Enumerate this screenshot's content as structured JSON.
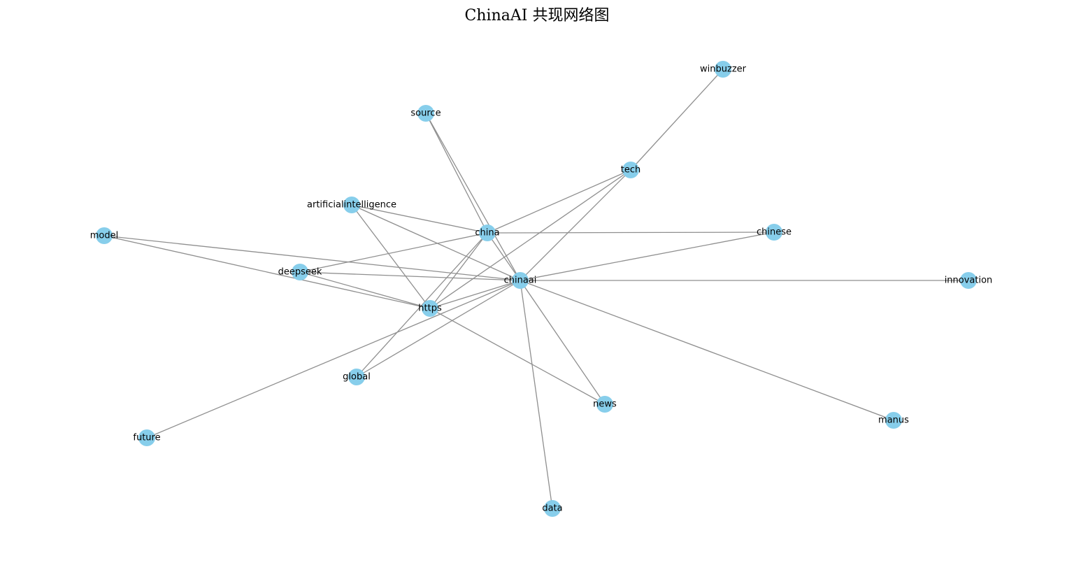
{
  "title": "ChinaAI 共现网络图",
  "colors": {
    "node": "#87ceeb",
    "edge": "#8f8f8f",
    "label": "#000000"
  },
  "nodes": [
    {
      "id": "chinaai",
      "label": "chinaai"
    },
    {
      "id": "china",
      "label": "china"
    },
    {
      "id": "https",
      "label": "https"
    },
    {
      "id": "deepseek",
      "label": "deepseek"
    },
    {
      "id": "artificialintelligence",
      "label": "artificialintelligence"
    },
    {
      "id": "tech",
      "label": "tech"
    },
    {
      "id": "source",
      "label": "source"
    },
    {
      "id": "winbuzzer",
      "label": "winbuzzer"
    },
    {
      "id": "chinese",
      "label": "chinese"
    },
    {
      "id": "model",
      "label": "model"
    },
    {
      "id": "innovation",
      "label": "innovation"
    },
    {
      "id": "global",
      "label": "global"
    },
    {
      "id": "news",
      "label": "news"
    },
    {
      "id": "future",
      "label": "future"
    },
    {
      "id": "manus",
      "label": "manus"
    },
    {
      "id": "data",
      "label": "data"
    }
  ],
  "edges": [
    [
      "chinaai",
      "china"
    ],
    [
      "chinaai",
      "https"
    ],
    [
      "chinaai",
      "deepseek"
    ],
    [
      "chinaai",
      "artificialintelligence"
    ],
    [
      "chinaai",
      "tech"
    ],
    [
      "chinaai",
      "source"
    ],
    [
      "chinaai",
      "chinese"
    ],
    [
      "chinaai",
      "model"
    ],
    [
      "chinaai",
      "innovation"
    ],
    [
      "chinaai",
      "global"
    ],
    [
      "chinaai",
      "news"
    ],
    [
      "chinaai",
      "future"
    ],
    [
      "chinaai",
      "manus"
    ],
    [
      "chinaai",
      "data"
    ],
    [
      "china",
      "source"
    ],
    [
      "china",
      "tech"
    ],
    [
      "china",
      "artificialintelligence"
    ],
    [
      "china",
      "chinese"
    ],
    [
      "china",
      "deepseek"
    ],
    [
      "china",
      "https"
    ],
    [
      "china",
      "global"
    ],
    [
      "https",
      "tech"
    ],
    [
      "https",
      "artificialintelligence"
    ],
    [
      "https",
      "deepseek"
    ],
    [
      "https",
      "model"
    ],
    [
      "https",
      "news"
    ],
    [
      "tech",
      "winbuzzer"
    ]
  ]
}
